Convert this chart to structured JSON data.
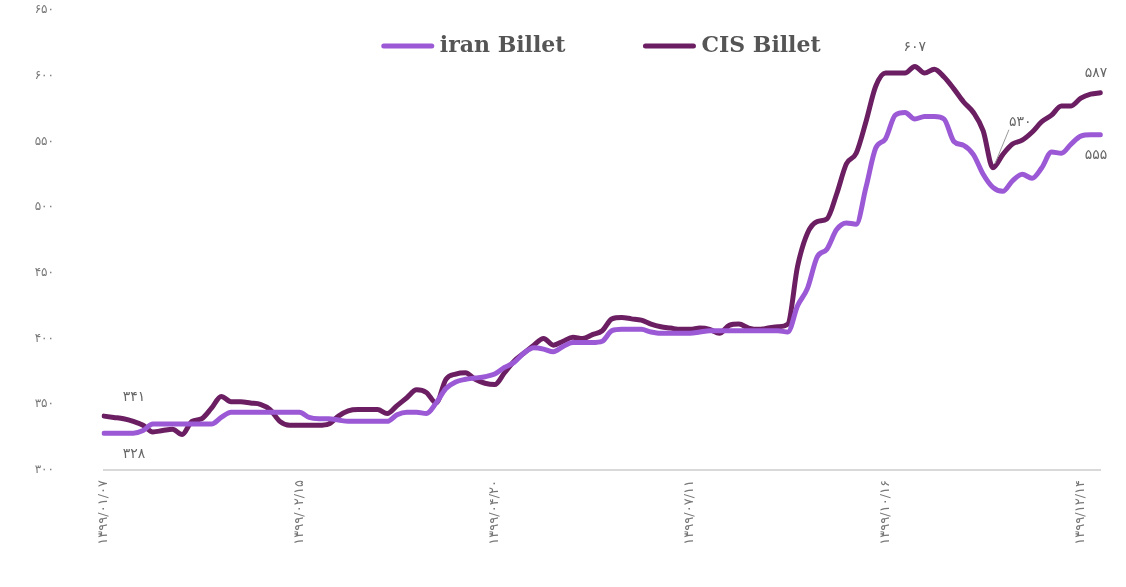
{
  "chart_data": {
    "type": "line",
    "categories": [
      "۱۳۹۹/۰۱/۰۷",
      null,
      null,
      null,
      null,
      null,
      null,
      null,
      null,
      null,
      null,
      null,
      null,
      null,
      null,
      null,
      null,
      null,
      null,
      null,
      "۱۳۹۹/۰۲/۱۵",
      null,
      null,
      null,
      null,
      null,
      null,
      null,
      null,
      null,
      null,
      null,
      null,
      null,
      null,
      null,
      null,
      null,
      null,
      null,
      "۱۳۹۹/۰۴/۲۰",
      null,
      null,
      null,
      null,
      null,
      null,
      null,
      null,
      null,
      null,
      null,
      null,
      null,
      null,
      null,
      null,
      null,
      null,
      null,
      "۱۳۹۹/۰۷/۱۱",
      null,
      null,
      null,
      null,
      null,
      null,
      null,
      null,
      null,
      null,
      null,
      null,
      null,
      null,
      null,
      null,
      null,
      null,
      null,
      "۱۳۹۹/۱۰/۱۶",
      null,
      null,
      null,
      null,
      null,
      null,
      null,
      null,
      null,
      null,
      null,
      null,
      null,
      null,
      null,
      null,
      null,
      null,
      null,
      "۱۳۹۹/۱۲/۱۴",
      null,
      null
    ],
    "series": [
      {
        "name": "iran Billet",
        "color": "#9b59d6",
        "values": [
          328,
          328,
          328,
          328,
          330,
          335,
          335,
          335,
          335,
          335,
          335,
          335,
          340,
          344,
          344,
          344,
          344,
          344,
          344,
          344,
          344,
          340,
          339,
          339,
          338,
          337,
          337,
          337,
          337,
          337,
          342,
          344,
          344,
          343,
          351,
          362,
          367,
          369,
          370,
          371,
          373,
          378,
          382,
          389,
          393,
          392,
          390,
          394,
          397,
          397,
          397,
          398,
          406,
          407,
          407,
          407,
          405,
          404,
          404,
          404,
          404,
          405,
          406,
          406,
          406,
          406,
          406,
          406,
          406,
          406,
          405,
          425,
          438,
          462,
          468,
          483,
          488,
          487,
          515,
          545,
          552,
          570,
          572,
          567,
          569,
          569,
          567,
          550,
          547,
          540,
          525,
          515,
          512,
          520,
          525,
          522,
          530,
          542,
          541,
          548,
          554,
          555,
          555
        ],
        "value_labels": [
          "۳۲۸",
          null,
          null,
          null,
          null,
          null,
          null,
          null,
          null,
          null,
          null,
          null,
          null,
          null,
          null,
          null,
          null,
          null,
          null,
          null,
          null,
          null,
          null,
          null,
          null,
          null,
          null,
          null,
          null,
          null,
          null,
          null,
          null,
          null,
          null,
          null,
          null,
          null,
          null,
          null,
          null,
          null,
          null,
          null,
          null,
          null,
          null,
          null,
          null,
          null,
          null,
          null,
          null,
          null,
          null,
          null,
          null,
          null,
          null,
          null,
          null,
          null,
          null,
          null,
          null,
          null,
          null,
          null,
          null,
          null,
          null,
          null,
          null,
          null,
          null,
          null,
          null,
          null,
          null,
          null,
          null,
          null,
          null,
          null,
          null,
          null,
          null,
          null,
          null,
          null,
          null,
          null,
          null,
          null,
          null,
          null,
          null,
          null,
          null,
          null,
          null,
          null,
          "۵۵۵"
        ]
      },
      {
        "name": "CIS Billet",
        "color": "#6b1f62",
        "values": [
          341,
          340,
          339,
          337,
          334,
          329,
          330,
          331,
          327,
          337,
          339,
          347,
          356,
          352,
          352,
          351,
          350,
          346,
          337,
          334,
          334,
          334,
          334,
          335,
          341,
          345,
          346,
          346,
          346,
          343,
          349,
          355,
          361,
          359,
          351,
          369,
          373,
          374,
          369,
          366,
          365,
          374,
          383,
          389,
          395,
          400,
          395,
          398,
          401,
          400,
          403,
          406,
          415,
          416,
          415,
          414,
          411,
          409,
          408,
          407,
          407,
          408,
          407,
          404,
          410,
          411,
          408,
          407,
          408,
          409,
          411,
          455,
          480,
          489,
          491,
          510,
          533,
          541,
          565,
          592,
          602,
          602,
          602,
          607,
          602,
          605,
          599,
          590,
          580,
          572,
          558,
          530,
          540,
          548,
          551,
          557,
          565,
          570,
          577,
          577,
          583,
          586,
          587
        ],
        "value_labels": [
          "۳۴۱",
          null,
          null,
          null,
          null,
          null,
          null,
          null,
          null,
          null,
          null,
          null,
          null,
          null,
          null,
          null,
          null,
          null,
          null,
          null,
          null,
          null,
          null,
          null,
          null,
          null,
          null,
          null,
          null,
          null,
          null,
          null,
          null,
          null,
          null,
          null,
          null,
          null,
          null,
          null,
          null,
          null,
          null,
          null,
          null,
          null,
          null,
          null,
          null,
          null,
          null,
          null,
          null,
          null,
          null,
          null,
          null,
          null,
          null,
          null,
          null,
          null,
          null,
          null,
          null,
          null,
          null,
          null,
          null,
          null,
          null,
          null,
          null,
          null,
          null,
          null,
          null,
          null,
          null,
          null,
          null,
          null,
          null,
          "۶۰۷",
          null,
          null,
          null,
          null,
          null,
          null,
          null,
          "۵۳۰",
          null,
          null,
          null,
          null,
          null,
          null,
          null,
          null,
          null,
          null,
          "۵۸۷"
        ]
      }
    ],
    "ylim": [
      300,
      650
    ],
    "yticks": [
      {
        "value": 300,
        "label": "۳۰۰"
      },
      {
        "value": 350,
        "label": "۳۵۰"
      },
      {
        "value": 400,
        "label": "۴۰۰"
      },
      {
        "value": 450,
        "label": "۴۵۰"
      },
      {
        "value": 500,
        "label": "۵۰۰"
      },
      {
        "value": 550,
        "label": "۵۵۰"
      },
      {
        "value": 600,
        "label": "۶۰۰"
      },
      {
        "value": 650,
        "label": "۶۵۰"
      }
    ],
    "grid": false,
    "legend": "top",
    "marker": "none",
    "line_style": "solid"
  }
}
